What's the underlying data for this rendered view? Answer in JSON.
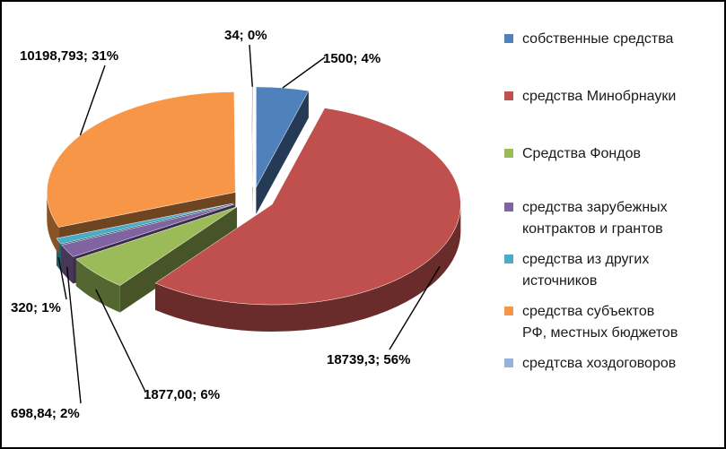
{
  "chart_data": {
    "type": "pie",
    "style": "3d-exploded",
    "legend_position": "right",
    "series": [
      {
        "name": "собственные средства",
        "value": 1500,
        "label": "1500; 4%",
        "color": "#4f81bd"
      },
      {
        "name": "средства Минобрнауки",
        "value": 18739.3,
        "label": "18739,3; 56%",
        "color": "#c0504d"
      },
      {
        "name": "Средства Фондов",
        "value": 1877.0,
        "label": "1877,00; 6%",
        "color": "#9bbb59"
      },
      {
        "name": "средства зарубежных контрактов и грантов",
        "value": 698.84,
        "label": "698,84; 2%",
        "color": "#8064a2"
      },
      {
        "name": "средства из других источников",
        "value": 320,
        "label": "320; 1%",
        "color": "#4bacc6"
      },
      {
        "name": "средства субъектов РФ, местных бюджетов",
        "value": 10198.793,
        "label": "10198,793; 31%",
        "color": "#f79646"
      },
      {
        "name": "средтсва хоздоговоров",
        "value": 34,
        "label": "34; 0%",
        "color": "#95b3d7"
      }
    ]
  },
  "legend": {
    "items": [
      {
        "lines": [
          "собственные средства"
        ]
      },
      {
        "lines": [
          "средства Минобрнауки"
        ]
      },
      {
        "lines": [
          "Средства Фондов"
        ]
      },
      {
        "lines": [
          "средства зарубежных",
          "контрактов и грантов"
        ]
      },
      {
        "lines": [
          "средства из других",
          "источников"
        ]
      },
      {
        "lines": [
          "средства субъектов",
          "РФ, местных бюджетов"
        ]
      },
      {
        "lines": [
          "средтсва хоздоговоров"
        ]
      }
    ]
  }
}
